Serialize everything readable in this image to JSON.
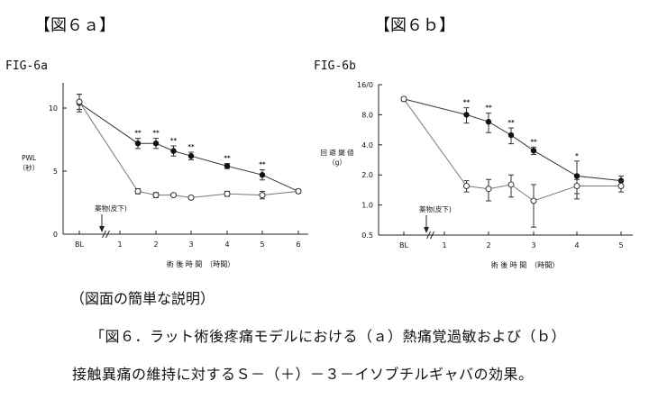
{
  "header": {
    "left_bracket": "【図６ａ】",
    "right_bracket": "【図６ｂ】",
    "left_fig_id": "FIG-6a",
    "right_fig_id": "FIG-6b"
  },
  "caption": {
    "heading": "（図面の簡単な説明）",
    "line1": "「図６．ラット術後疼痛モデルにおける（ａ）熱痛覚過敏および（ｂ）",
    "line2": "接触異痛の維持に対するＳ－（＋）－３－イソブチルギャバの効果。"
  },
  "chart_data": [
    {
      "type": "line",
      "title": "",
      "xlabel": "術 後 時 間　（時間）",
      "ylabel": "PWL\n（秒）",
      "x_ticks": [
        "BL",
        "1",
        "2",
        "3",
        "4",
        "5",
        "6"
      ],
      "y_ticks": [
        "0",
        "5",
        "10"
      ],
      "ylim": [
        0,
        12
      ],
      "annotation": "薬物(皮下)",
      "annotation_x": 1,
      "grid": false,
      "series": [
        {
          "marker": "filled",
          "x": [
            "BL",
            1.5,
            2,
            2.5,
            3,
            4,
            5,
            6
          ],
          "y": [
            10.4,
            7.2,
            7.2,
            6.6,
            6.2,
            5.4,
            4.7,
            3.4
          ],
          "err": [
            0.7,
            0.4,
            0.4,
            0.4,
            0.3,
            0.2,
            0.4,
            0.15
          ],
          "significance": [
            "",
            "**",
            "**",
            "**",
            "**",
            "**",
            "**",
            ""
          ]
        },
        {
          "marker": "open",
          "x": [
            "BL",
            1.5,
            2,
            2.5,
            3,
            4,
            5,
            6
          ],
          "y": [
            10.5,
            3.4,
            3.1,
            3.1,
            2.9,
            3.2,
            3.1,
            3.4
          ],
          "err": [
            0.6,
            0.2,
            0.2,
            0.1,
            0.1,
            0.2,
            0.3,
            0.1
          ]
        }
      ]
    },
    {
      "type": "line",
      "title": "",
      "xlabel": "術 後 時 間　（時間）",
      "ylabel": "回 避 閾 値\n（g）",
      "x_ticks": [
        "BL",
        "1",
        "2",
        "3",
        "4",
        "5"
      ],
      "y_ticks": [
        "0.5",
        "1.0",
        "2.0",
        "4.0",
        "8.0",
        "16/0"
      ],
      "y_scale": "log",
      "ylim": [
        0.5,
        16
      ],
      "annotation": "薬物(皮下)",
      "annotation_x": 1,
      "grid": false,
      "series": [
        {
          "marker": "filled",
          "x": [
            "BL",
            1.5,
            2,
            2.5,
            3,
            4,
            5
          ],
          "y": [
            11.5,
            8.0,
            6.8,
            5.0,
            3.5,
            1.95,
            1.75
          ],
          "err": [
            0.5,
            1.4,
            1.5,
            0.9,
            0.3,
            0.8,
            0.2
          ],
          "significance": [
            "",
            "**",
            "**",
            "**",
            "**",
            "*",
            ""
          ]
        },
        {
          "marker": "open",
          "x": [
            "BL",
            1.5,
            2,
            2.5,
            3,
            4,
            5
          ],
          "y": [
            11.5,
            1.55,
            1.45,
            1.6,
            1.1,
            1.55,
            1.55
          ],
          "err": [
            0.5,
            0.2,
            0.35,
            0.4,
            0.5,
            0.25,
            0.2
          ]
        }
      ]
    }
  ]
}
